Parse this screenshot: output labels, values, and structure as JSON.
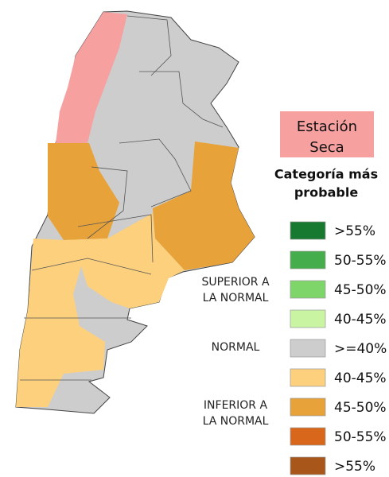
{
  "title": {
    "lines": [
      "Estación",
      "Seca"
    ]
  },
  "subtitle": {
    "lines": [
      "Categoría más",
      "probable"
    ]
  },
  "legend": {
    "groups": [
      {
        "lines": [
          "SUPERIOR A",
          "LA NORMAL"
        ]
      },
      {
        "lines": [
          "NORMAL"
        ]
      },
      {
        "lines": [
          "INFERIOR A",
          "LA NORMAL"
        ]
      }
    ],
    "items": [
      {
        "label": ">55%",
        "color": "#17782f"
      },
      {
        "label": "50-55%",
        "color": "#45ad4b"
      },
      {
        "label": "45-50%",
        "color": "#7ed66a"
      },
      {
        "label": "40-45%",
        "color": "#c9f5a3"
      },
      {
        "label": ">=40%",
        "color": "#cdcdcd"
      },
      {
        "label": "40-45%",
        "color": "#fdd07e"
      },
      {
        "label": "45-50%",
        "color": "#e8a23a"
      },
      {
        "label": "50-55%",
        "color": "#d8661b"
      },
      {
        "label": ">55%",
        "color": "#a9561a"
      }
    ]
  }
}
